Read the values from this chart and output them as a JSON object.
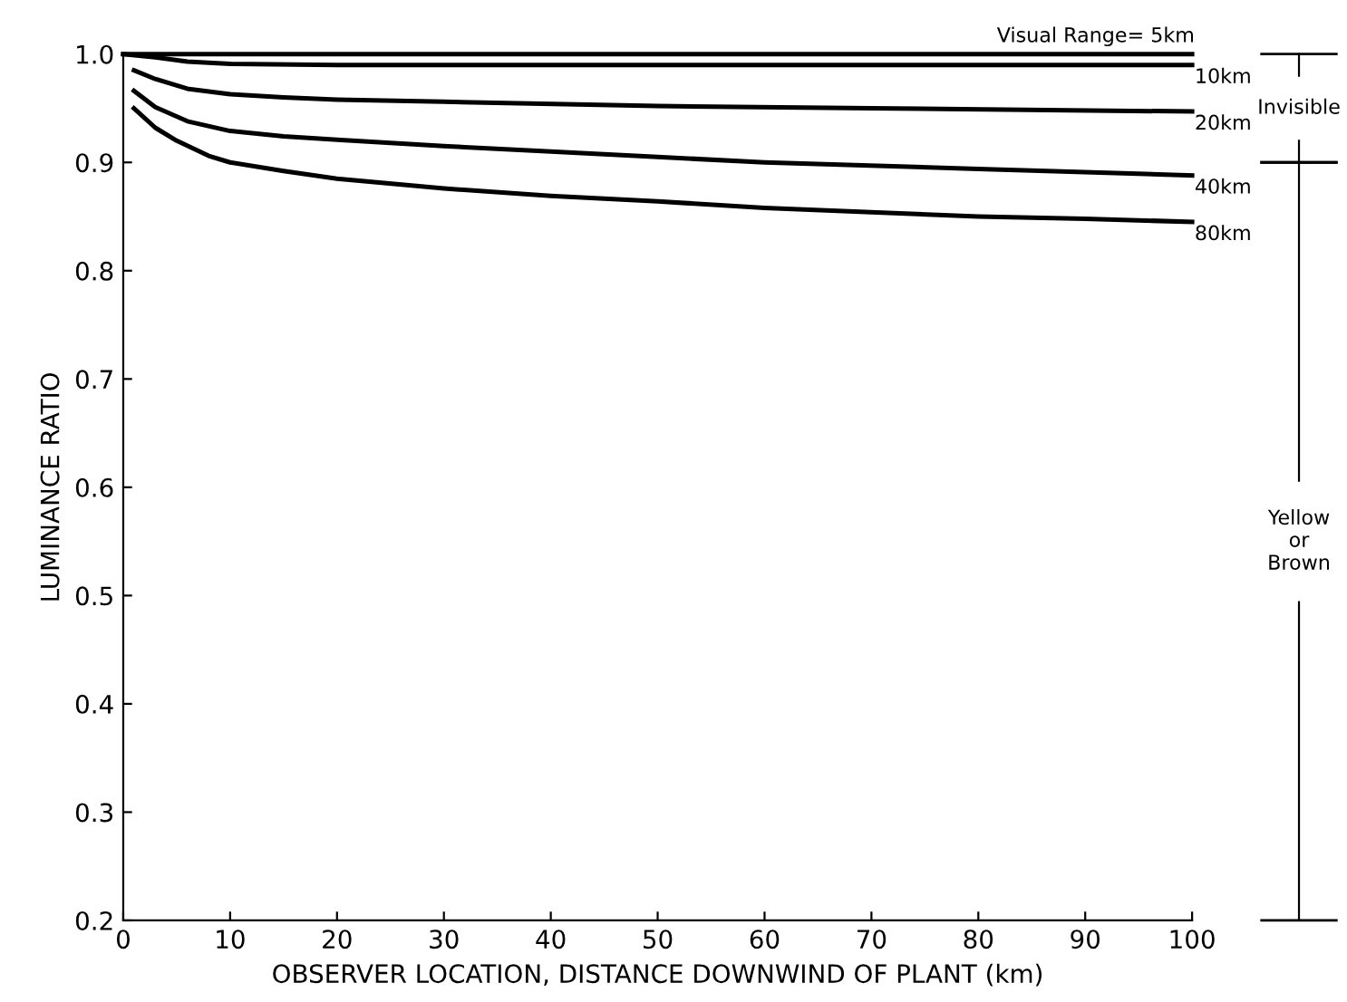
{
  "chart_data": {
    "type": "line",
    "xlabel": "OBSERVER LOCATION, DISTANCE DOWNWIND OF PLANT (km)",
    "ylabel": "LUMINANCE RATIO",
    "xlim": [
      0,
      100
    ],
    "ylim": [
      0.2,
      1.0
    ],
    "xticks": [
      0,
      10,
      20,
      30,
      40,
      50,
      60,
      70,
      80,
      90,
      100
    ],
    "yticks": [
      {
        "value": 0.2,
        "label": "0.2"
      },
      {
        "value": 0.3,
        "label": "0.3"
      },
      {
        "value": 0.4,
        "label": "0.4"
      },
      {
        "value": 0.5,
        "label": "0.5"
      },
      {
        "value": 0.6,
        "label": "0.6"
      },
      {
        "value": 0.7,
        "label": "0.7"
      },
      {
        "value": 0.8,
        "label": "0.8"
      },
      {
        "value": 0.9,
        "label": "0.9"
      },
      {
        "value": 1.0,
        "label": "1.0"
      }
    ],
    "grid": false,
    "legend": false,
    "marker": "none",
    "line_style": "solid",
    "series": [
      {
        "name": "Visual Range= 5km",
        "color": "#000000",
        "x": [
          0,
          20,
          50,
          100
        ],
        "values": [
          1.0,
          1.0,
          1.0,
          1.0
        ]
      },
      {
        "name": "10km",
        "color": "#000000",
        "x": [
          0,
          3,
          6,
          10,
          20,
          50,
          100
        ],
        "values": [
          1.0,
          0.997,
          0.993,
          0.991,
          0.99,
          0.99,
          0.99
        ]
      },
      {
        "name": "20km",
        "color": "#000000",
        "x": [
          1,
          3,
          6,
          10,
          15,
          20,
          30,
          50,
          70,
          100
        ],
        "values": [
          0.985,
          0.977,
          0.968,
          0.963,
          0.96,
          0.958,
          0.956,
          0.952,
          0.95,
          0.947
        ]
      },
      {
        "name": "40km",
        "color": "#000000",
        "x": [
          1,
          3,
          6,
          10,
          15,
          20,
          30,
          40,
          50,
          60,
          80,
          100
        ],
        "values": [
          0.966,
          0.951,
          0.938,
          0.929,
          0.924,
          0.921,
          0.915,
          0.91,
          0.905,
          0.9,
          0.894,
          0.888
        ]
      },
      {
        "name": "80km",
        "color": "#000000",
        "x": [
          1,
          3,
          5,
          8,
          10,
          15,
          20,
          30,
          40,
          50,
          60,
          70,
          80,
          90,
          100
        ],
        "values": [
          0.95,
          0.932,
          0.92,
          0.906,
          0.9,
          0.892,
          0.885,
          0.876,
          0.869,
          0.864,
          0.858,
          0.854,
          0.85,
          0.848,
          0.845
        ]
      }
    ],
    "annotations": [
      "Invisible",
      "Yellow\nor\nBrown"
    ]
  }
}
